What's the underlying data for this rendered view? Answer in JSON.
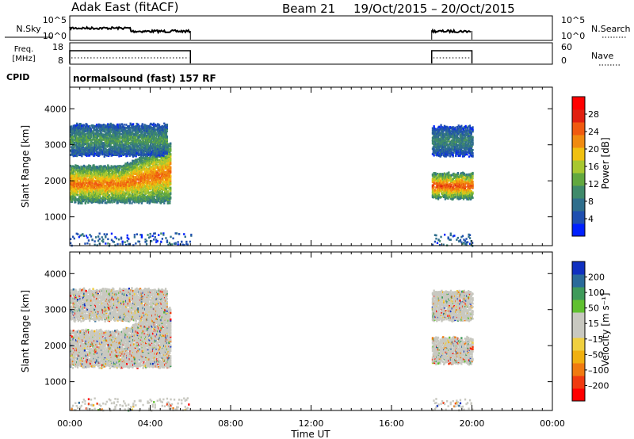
{
  "header": {
    "station": "Adak East (fitACF)",
    "beam": "Beam 21",
    "date_range": "19/Oct/2015 – 20/Oct/2015"
  },
  "strip_labels": {
    "nsky": "N.Sky",
    "nsky_ticks": [
      "10^5",
      "10^0"
    ],
    "nsearch": "N.Search",
    "nsearch_ticks": [
      "10^5",
      "10^0"
    ],
    "freq_line1": "Freq.",
    "freq_line2": "[MHz]",
    "freq_ticks": [
      "18",
      "8"
    ],
    "nave": "Nave",
    "nave_ticks": [
      "60",
      "0"
    ],
    "cpid": "CPID",
    "cpid_text": "normalsound (fast) 157 RF"
  },
  "chart_data": [
    {
      "type": "heatmap",
      "name": "power",
      "xlabel": "Time UT",
      "ylabel": "Slant Range [km]",
      "x_range_hours": [
        0,
        24
      ],
      "xlim": [
        "00:00",
        "00:00"
      ],
      "xticks": [
        "00:00",
        "04:00",
        "08:00",
        "12:00",
        "16:00",
        "20:00",
        "00:00"
      ],
      "xtick_hours": [
        0,
        4,
        8,
        12,
        16,
        20,
        24
      ],
      "ylim": [
        200,
        4600
      ],
      "yticks": [
        1000,
        2000,
        3000,
        4000
      ],
      "colorbar_label": "Power [dB]",
      "colorbar_ticks": [
        "4",
        "8",
        "12",
        "16",
        "20",
        "24",
        "28"
      ],
      "colorbar_tick_values": [
        4,
        8,
        12,
        16,
        20,
        24,
        28
      ],
      "colorbar_range": [
        0,
        32
      ],
      "data_windows_hours": [
        [
          0.0,
          6.0
        ],
        [
          18.0,
          20.0
        ]
      ],
      "echo_bands": [
        {
          "t0": 0.0,
          "t1": 5.0,
          "r_low": 1400,
          "r_high": 2400,
          "peak_db": 24
        },
        {
          "t0": 0.0,
          "t1": 4.8,
          "r_low": 2700,
          "r_high": 3550,
          "peak_db": 12
        },
        {
          "t0": 18.0,
          "t1": 20.0,
          "r_low": 1500,
          "r_high": 2200,
          "peak_db": 26
        },
        {
          "t0": 18.0,
          "t1": 20.0,
          "r_low": 2700,
          "r_high": 3500,
          "peak_db": 10
        }
      ]
    },
    {
      "type": "heatmap",
      "name": "velocity",
      "xlabel": "Time UT",
      "ylabel": "Slant Range [km]",
      "x_range_hours": [
        0,
        24
      ],
      "xticks": [
        "00:00",
        "04:00",
        "08:00",
        "12:00",
        "16:00",
        "20:00",
        "00:00"
      ],
      "xtick_hours": [
        0,
        4,
        8,
        12,
        16,
        20,
        24
      ],
      "ylim": [
        200,
        4600
      ],
      "yticks": [
        1000,
        2000,
        3000,
        4000
      ],
      "colorbar_label": "Velocity [m s⁻¹]",
      "colorbar_ticks": [
        "200",
        "100",
        "50",
        "15",
        "–15",
        "–50",
        "–100",
        "–200"
      ],
      "colorbar_tick_values": [
        200,
        100,
        50,
        15,
        -15,
        -50,
        -100,
        -200
      ],
      "colorbar_range": [
        -250,
        250
      ],
      "data_windows_hours": [
        [
          0.0,
          6.0
        ],
        [
          18.0,
          20.0
        ]
      ]
    }
  ],
  "power_colors": [
    "#0020ff",
    "#1f4fb0",
    "#2f6e8c",
    "#3f8a6a",
    "#62a83f",
    "#a8c830",
    "#f0c010",
    "#f08a10",
    "#f05a10",
    "#e02010",
    "#ff0000"
  ],
  "velocity_colors": [
    "#ff0000",
    "#f03a10",
    "#f07a10",
    "#f0b010",
    "#f0d040",
    "#c8c8c0",
    "#c8c8c0",
    "#60c030",
    "#3f9a5a",
    "#2a6a9a",
    "#1030c0"
  ]
}
